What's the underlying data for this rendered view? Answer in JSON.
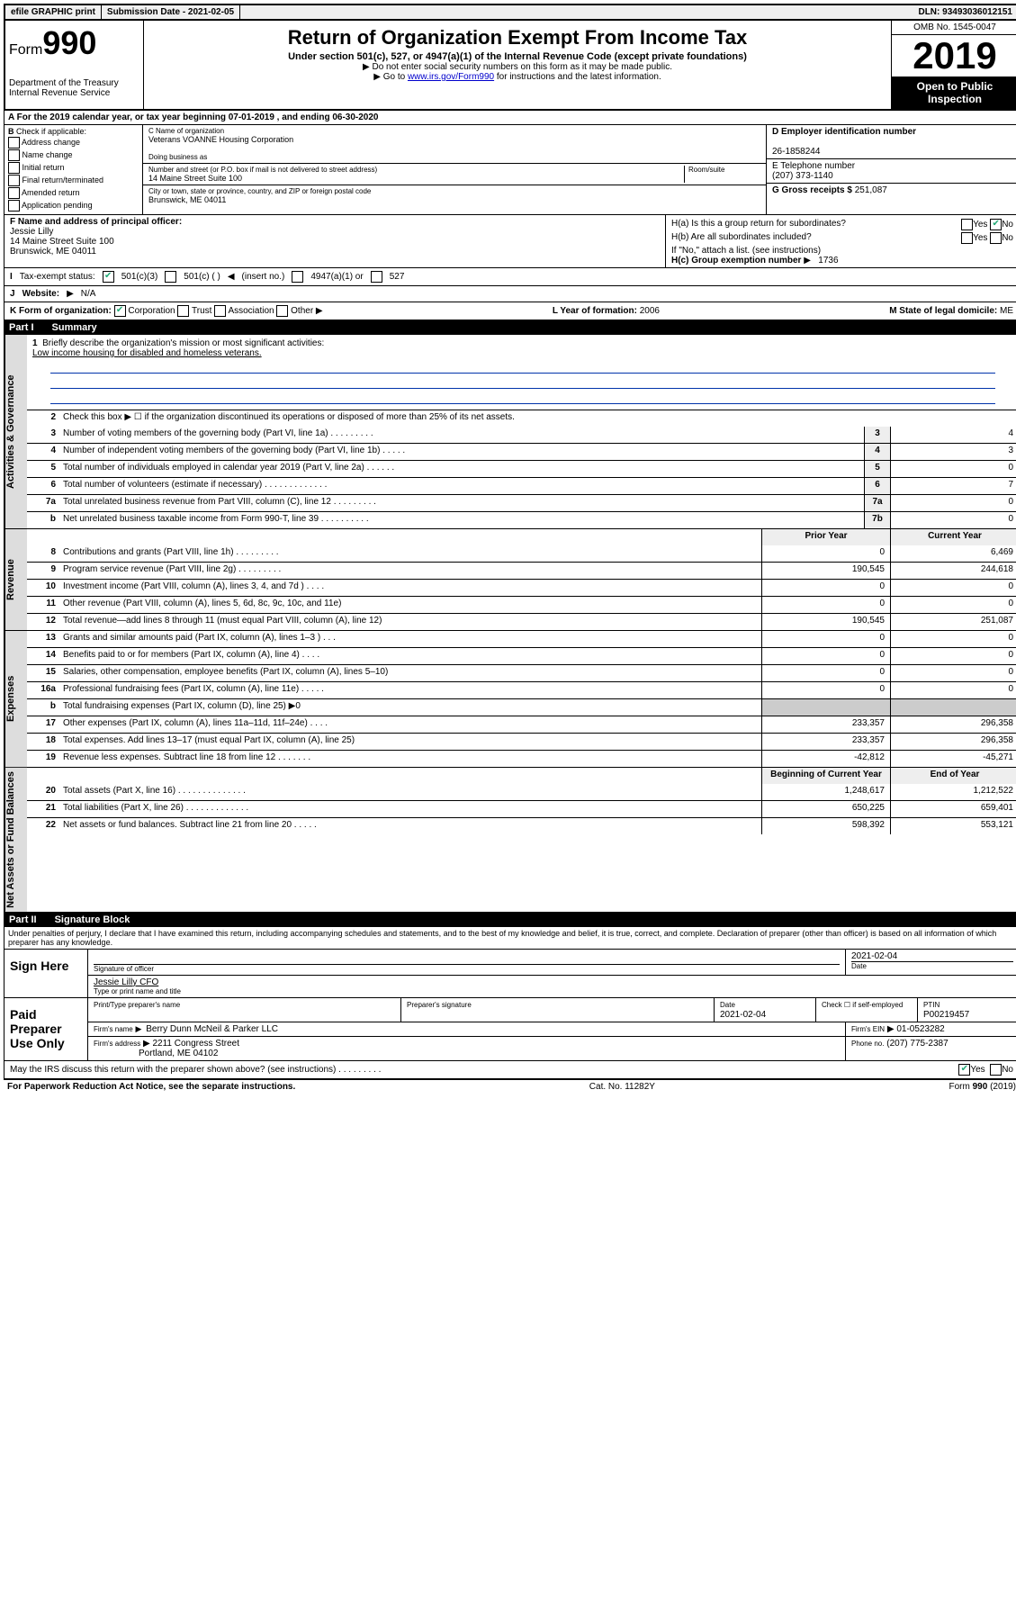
{
  "topbar": {
    "efile": "efile GRAPHIC print",
    "submission_label": "Submission Date - 2021-02-05",
    "dln": "DLN: 93493036012151"
  },
  "header": {
    "form_prefix": "Form",
    "form_number": "990",
    "dept": "Department of the Treasury",
    "irs": "Internal Revenue Service",
    "title": "Return of Organization Exempt From Income Tax",
    "subtitle": "Under section 501(c), 527, or 4947(a)(1) of the Internal Revenue Code (except private foundations)",
    "note1": "Do not enter social security numbers on this form as it may be made public.",
    "note2_pre": "Go to ",
    "note2_link": "www.irs.gov/Form990",
    "note2_post": " for instructions and the latest information.",
    "omb": "OMB No. 1545-0047",
    "year": "2019",
    "open": "Open to Public Inspection"
  },
  "rowA": "For the 2019 calendar year, or tax year beginning 07-01-2019    , and ending 06-30-2020",
  "boxB": {
    "label": "Check if applicable:",
    "opts": [
      "Address change",
      "Name change",
      "Initial return",
      "Final return/terminated",
      "Amended return",
      "Application pending"
    ]
  },
  "boxC": {
    "name_label": "C Name of organization",
    "name": "Veterans VOANNE Housing Corporation",
    "dba_label": "Doing business as",
    "dba": "",
    "addr_label": "Number and street (or P.O. box if mail is not delivered to street address)",
    "room_label": "Room/suite",
    "addr": "14 Maine Street Suite 100",
    "city_label": "City or town, state or province, country, and ZIP or foreign postal code",
    "city": "Brunswick, ME  04011"
  },
  "boxD": {
    "label": "D Employer identification number",
    "val": "26-1858244"
  },
  "boxE": {
    "label": "E Telephone number",
    "val": "(207) 373-1140"
  },
  "boxG": {
    "label": "G Gross receipts $",
    "val": "251,087"
  },
  "boxF": {
    "label": "F  Name and address of principal officer:",
    "name": "Jessie Lilly",
    "addr1": "14 Maine Street Suite 100",
    "addr2": "Brunswick, ME  04011"
  },
  "boxH": {
    "a": "H(a)  Is this a group return for subordinates?",
    "b": "H(b)  Are all subordinates included?",
    "note": "If \"No,\" attach a list. (see instructions)",
    "c_label": "H(c)  Group exemption number",
    "c_val": "1736",
    "yes": "Yes",
    "no": "No"
  },
  "rowI": {
    "label": "Tax-exempt status:",
    "o1": "501(c)(3)",
    "o2": "501(c) (   )",
    "o2b": "(insert no.)",
    "o3": "4947(a)(1) or",
    "o4": "527"
  },
  "rowJ": {
    "label": "Website:",
    "val": "N/A"
  },
  "rowK": {
    "label": "K Form of organization:",
    "opts": [
      "Corporation",
      "Trust",
      "Association",
      "Other"
    ],
    "L_label": "L Year of formation:",
    "L_val": "2006",
    "M_label": "M State of legal domicile:",
    "M_val": "ME"
  },
  "partI": {
    "tag": "Part I",
    "title": "Summary"
  },
  "mission": {
    "q": "Briefly describe the organization's mission or most significant activities:",
    "a": "Low income housing for disabled and homeless veterans."
  },
  "summary": {
    "line2": "Check this box ▶ ☐  if the organization discontinued its operations or disposed of more than 25% of its net assets.",
    "lines_simple": [
      {
        "n": "3",
        "d": "Number of voting members of the governing body (Part VI, line 1a)  .    .    .    .    .    .    .    .    .",
        "b": "3",
        "v": "4"
      },
      {
        "n": "4",
        "d": "Number of independent voting members of the governing body (Part VI, line 1b)    .    .    .    .    .",
        "b": "4",
        "v": "3"
      },
      {
        "n": "5",
        "d": "Total number of individuals employed in calendar year 2019 (Part V, line 2a)   .    .    .    .    .    .",
        "b": "5",
        "v": "0"
      },
      {
        "n": "6",
        "d": "Total number of volunteers (estimate if necessary)   .    .    .    .    .    .    .    .    .    .    .    .    .",
        "b": "6",
        "v": "7"
      },
      {
        "n": "7a",
        "d": "Total unrelated business revenue from Part VIII, column (C), line 12   .    .    .    .    .    .    .    .    .",
        "b": "7a",
        "v": "0"
      },
      {
        "n": "b",
        "d": "Net unrelated business taxable income from Form 990-T, line 39   .    .    .    .    .    .    .    .    .    .",
        "b": "7b",
        "v": "0"
      }
    ],
    "header_prior": "Prior Year",
    "header_current": "Current Year",
    "revenue": [
      {
        "n": "8",
        "d": "Contributions and grants (Part VIII, line 1h)   .    .    .    .    .    .    .    .    .",
        "p": "0",
        "c": "6,469"
      },
      {
        "n": "9",
        "d": "Program service revenue (Part VIII, line 2g)    .    .    .    .    .    .    .    .    .",
        "p": "190,545",
        "c": "244,618"
      },
      {
        "n": "10",
        "d": "Investment income (Part VIII, column (A), lines 3, 4, and 7d )    .    .    .    .",
        "p": "0",
        "c": "0"
      },
      {
        "n": "11",
        "d": "Other revenue (Part VIII, column (A), lines 5, 6d, 8c, 9c, 10c, and 11e)",
        "p": "0",
        "c": "0"
      },
      {
        "n": "12",
        "d": "Total revenue—add lines 8 through 11 (must equal Part VIII, column (A), line 12)",
        "p": "190,545",
        "c": "251,087"
      }
    ],
    "expenses": [
      {
        "n": "13",
        "d": "Grants and similar amounts paid (Part IX, column (A), lines 1–3 )    .    .    .",
        "p": "0",
        "c": "0"
      },
      {
        "n": "14",
        "d": "Benefits paid to or for members (Part IX, column (A), line 4)   .    .    .    .",
        "p": "0",
        "c": "0"
      },
      {
        "n": "15",
        "d": "Salaries, other compensation, employee benefits (Part IX, column (A), lines 5–10)",
        "p": "0",
        "c": "0"
      },
      {
        "n": "16a",
        "d": "Professional fundraising fees (Part IX, column (A), line 11e)   .    .    .    .    .",
        "p": "0",
        "c": "0"
      },
      {
        "n": "b",
        "d": "Total fundraising expenses (Part IX, column (D), line 25) ▶0",
        "p": "",
        "c": "",
        "shaded": true
      },
      {
        "n": "17",
        "d": "Other expenses (Part IX, column (A), lines 11a–11d, 11f–24e)    .    .    .    .",
        "p": "233,357",
        "c": "296,358"
      },
      {
        "n": "18",
        "d": "Total expenses. Add lines 13–17 (must equal Part IX, column (A), line 25)",
        "p": "233,357",
        "c": "296,358"
      },
      {
        "n": "19",
        "d": "Revenue less expenses. Subtract line 18 from line 12   .    .    .    .    .    .    .",
        "p": "-42,812",
        "c": "-45,271"
      }
    ],
    "header_begin": "Beginning of Current Year",
    "header_end": "End of Year",
    "netassets": [
      {
        "n": "20",
        "d": "Total assets (Part X, line 16)    .    .    .    .    .    .    .    .    .    .    .    .    .    .",
        "p": "1,248,617",
        "c": "1,212,522"
      },
      {
        "n": "21",
        "d": "Total liabilities (Part X, line 26)    .    .    .    .    .    .    .    .    .    .    .    .    .",
        "p": "650,225",
        "c": "659,401"
      },
      {
        "n": "22",
        "d": "Net assets or fund balances. Subtract line 21 from line 20   .    .    .    .    .",
        "p": "598,392",
        "c": "553,121"
      }
    ]
  },
  "vtabs": {
    "gov": "Activities & Governance",
    "rev": "Revenue",
    "exp": "Expenses",
    "net": "Net Assets or Fund Balances"
  },
  "partII": {
    "tag": "Part II",
    "title": "Signature Block"
  },
  "declaration": "Under penalties of perjury, I declare that I have examined this return, including accompanying schedules and statements, and to the best of my knowledge and belief, it is true, correct, and complete. Declaration of preparer (other than officer) is based on all information of which preparer has any knowledge.",
  "sign": {
    "here": "Sign Here",
    "sig_officer": "Signature of officer",
    "date": "2021-02-04",
    "date_label": "Date",
    "name": "Jessie Lilly CFO",
    "name_label": "Type or print name and title"
  },
  "paid": {
    "label": "Paid Preparer Use Only",
    "h_name": "Print/Type preparer's name",
    "h_sig": "Preparer's signature",
    "h_date": "Date",
    "date": "2021-02-04",
    "h_check": "Check ☐ if self-employed",
    "h_ptin": "PTIN",
    "ptin": "P00219457",
    "firm_label": "Firm's name",
    "firm": "Berry Dunn McNeil & Parker LLC",
    "ein_label": "Firm's EIN",
    "ein": "01-0523282",
    "addr_label": "Firm's address",
    "addr1": "2211 Congress Street",
    "addr2": "Portland, ME  04102",
    "phone_label": "Phone no.",
    "phone": "(207) 775-2387"
  },
  "discuss": {
    "q": "May the IRS discuss this return with the preparer shown above? (see instructions)    .    .    .    .    .    .    .    .    .",
    "yes": "Yes",
    "no": "No"
  },
  "footer": {
    "pra": "For Paperwork Reduction Act Notice, see the separate instructions.",
    "cat": "Cat. No. 11282Y",
    "form": "Form 990 (2019)"
  }
}
